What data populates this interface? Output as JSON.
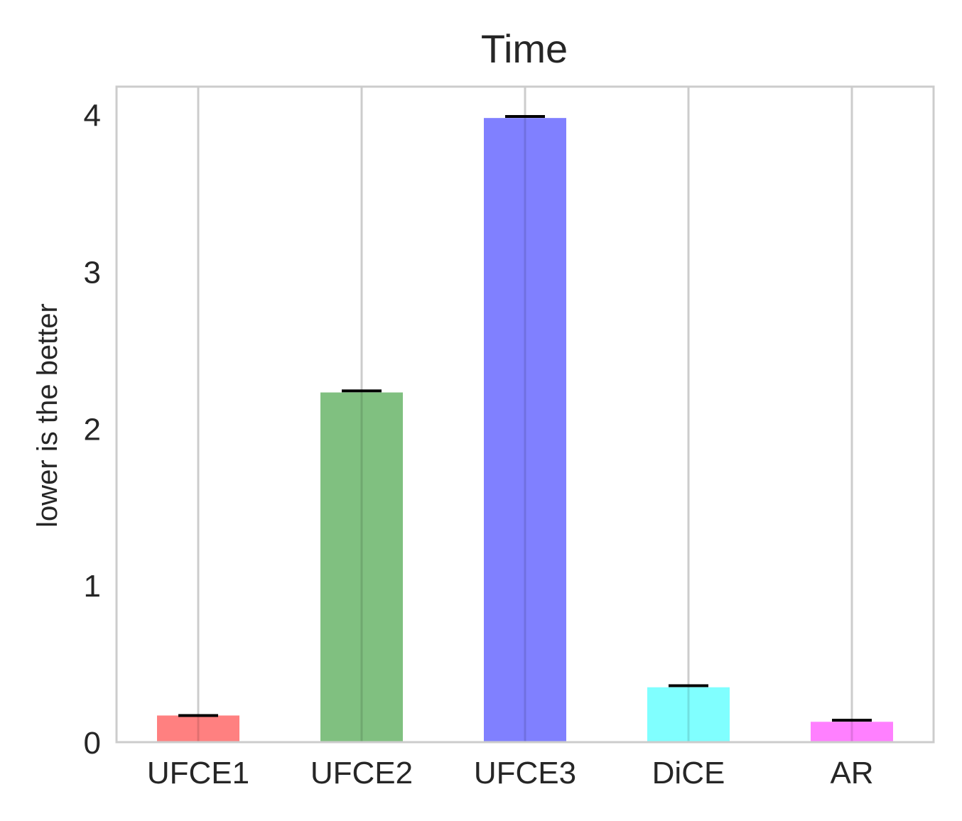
{
  "chart_data": {
    "type": "bar",
    "title": "Time",
    "xlabel": "",
    "ylabel": "lower is the better",
    "categories": [
      "UFCE1",
      "UFCE2",
      "UFCE3",
      "DiCE",
      "AR"
    ],
    "values": [
      0.17,
      2.23,
      3.98,
      0.35,
      0.13
    ],
    "error_caps": [
      0.17,
      2.24,
      3.99,
      0.36,
      0.14
    ],
    "colors": [
      "#ff8080",
      "#80c080",
      "#8080ff",
      "#80ffff",
      "#ff80ff"
    ],
    "ylim": [
      0,
      4.18
    ],
    "yticks": [
      0,
      1,
      2,
      3,
      4
    ],
    "grid": "vertical",
    "legend": "none"
  }
}
